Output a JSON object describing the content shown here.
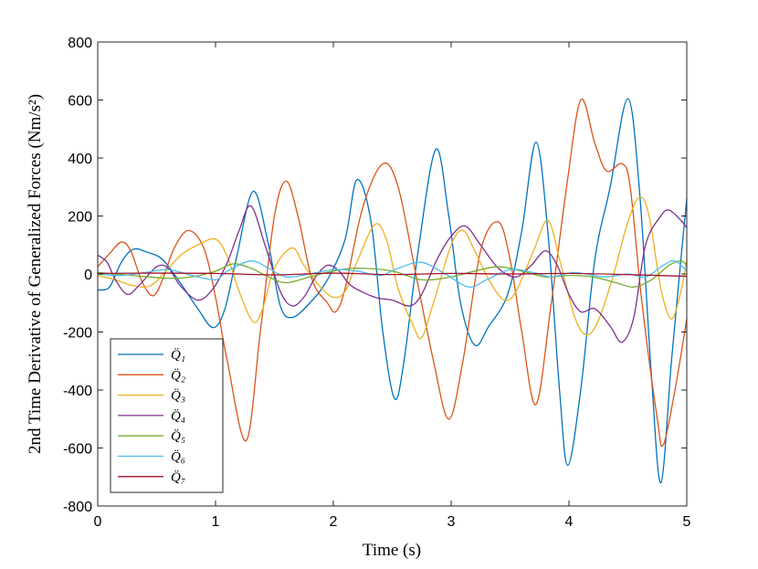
{
  "chart_data": {
    "type": "line",
    "xlabel": "Time (s)",
    "ylabel": "2nd Time Derivative of Generalized Forces (Nm/s²)",
    "xlim": [
      0,
      5
    ],
    "ylim": [
      -800,
      800
    ],
    "xticks": [
      0,
      1,
      2,
      3,
      4,
      5
    ],
    "yticks": [
      -800,
      -600,
      -400,
      -200,
      0,
      200,
      400,
      600,
      800
    ],
    "grid": false,
    "legend_position": "bottom-left",
    "series": [
      {
        "name": "Q̈₁",
        "color": "#0072BD",
        "points": [
          [
            0,
            -55
          ],
          [
            0.1,
            -45
          ],
          [
            0.2,
            40
          ],
          [
            0.3,
            85
          ],
          [
            0.42,
            75
          ],
          [
            0.55,
            50
          ],
          [
            0.7,
            -30
          ],
          [
            0.85,
            -120
          ],
          [
            0.98,
            -185
          ],
          [
            1.08,
            -120
          ],
          [
            1.18,
            60
          ],
          [
            1.32,
            285
          ],
          [
            1.45,
            100
          ],
          [
            1.55,
            -110
          ],
          [
            1.65,
            -150
          ],
          [
            1.8,
            -100
          ],
          [
            1.95,
            -20
          ],
          [
            2.1,
            120
          ],
          [
            2.2,
            325
          ],
          [
            2.32,
            180
          ],
          [
            2.42,
            -200
          ],
          [
            2.52,
            -430
          ],
          [
            2.6,
            -300
          ],
          [
            2.72,
            80
          ],
          [
            2.87,
            430
          ],
          [
            2.98,
            200
          ],
          [
            3.08,
            -100
          ],
          [
            3.2,
            -245
          ],
          [
            3.32,
            -180
          ],
          [
            3.48,
            -70
          ],
          [
            3.6,
            150
          ],
          [
            3.72,
            455
          ],
          [
            3.82,
            150
          ],
          [
            3.92,
            -400
          ],
          [
            3.99,
            -660
          ],
          [
            4.1,
            -400
          ],
          [
            4.22,
            50
          ],
          [
            4.35,
            300
          ],
          [
            4.5,
            605
          ],
          [
            4.6,
            280
          ],
          [
            4.7,
            -350
          ],
          [
            4.78,
            -720
          ],
          [
            4.87,
            -300
          ],
          [
            4.95,
            50
          ],
          [
            5.0,
            260
          ]
        ]
      },
      {
        "name": "Q̈₂",
        "color": "#D95319",
        "points": [
          [
            0,
            25
          ],
          [
            0.1,
            70
          ],
          [
            0.2,
            110
          ],
          [
            0.28,
            80
          ],
          [
            0.38,
            -30
          ],
          [
            0.47,
            -75
          ],
          [
            0.55,
            -20
          ],
          [
            0.65,
            90
          ],
          [
            0.77,
            150
          ],
          [
            0.9,
            90
          ],
          [
            1.0,
            -80
          ],
          [
            1.1,
            -300
          ],
          [
            1.26,
            -575
          ],
          [
            1.38,
            -200
          ],
          [
            1.5,
            200
          ],
          [
            1.6,
            320
          ],
          [
            1.7,
            200
          ],
          [
            1.82,
            -20
          ],
          [
            1.95,
            -100
          ],
          [
            2.02,
            -130
          ],
          [
            2.1,
            -50
          ],
          [
            2.25,
            230
          ],
          [
            2.42,
            380
          ],
          [
            2.55,
            300
          ],
          [
            2.7,
            0
          ],
          [
            2.85,
            -300
          ],
          [
            2.98,
            -500
          ],
          [
            3.1,
            -300
          ],
          [
            3.25,
            80
          ],
          [
            3.4,
            180
          ],
          [
            3.5,
            50
          ],
          [
            3.6,
            -200
          ],
          [
            3.72,
            -450
          ],
          [
            3.85,
            -100
          ],
          [
            3.98,
            300
          ],
          [
            4.1,
            600
          ],
          [
            4.22,
            450
          ],
          [
            4.32,
            355
          ],
          [
            4.45,
            380
          ],
          [
            4.52,
            300
          ],
          [
            4.62,
            -100
          ],
          [
            4.75,
            -500
          ],
          [
            4.8,
            -590
          ],
          [
            4.9,
            -400
          ],
          [
            5.0,
            -155
          ]
        ]
      },
      {
        "name": "Q̈₃",
        "color": "#EDB120",
        "points": [
          [
            0,
            -5
          ],
          [
            0.15,
            -20
          ],
          [
            0.3,
            -40
          ],
          [
            0.45,
            -40
          ],
          [
            0.6,
            20
          ],
          [
            0.72,
            70
          ],
          [
            0.85,
            100
          ],
          [
            1.0,
            120
          ],
          [
            1.1,
            60
          ],
          [
            1.2,
            -60
          ],
          [
            1.32,
            -165
          ],
          [
            1.4,
            -120
          ],
          [
            1.5,
            20
          ],
          [
            1.65,
            90
          ],
          [
            1.75,
            30
          ],
          [
            1.88,
            -40
          ],
          [
            2.0,
            -80
          ],
          [
            2.1,
            -60
          ],
          [
            2.2,
            40
          ],
          [
            2.35,
            170
          ],
          [
            2.45,
            120
          ],
          [
            2.55,
            -50
          ],
          [
            2.68,
            -180
          ],
          [
            2.75,
            -220
          ],
          [
            2.85,
            -100
          ],
          [
            3.0,
            100
          ],
          [
            3.1,
            150
          ],
          [
            3.2,
            80
          ],
          [
            3.32,
            -20
          ],
          [
            3.45,
            -90
          ],
          [
            3.55,
            -60
          ],
          [
            3.7,
            80
          ],
          [
            3.82,
            185
          ],
          [
            3.92,
            50
          ],
          [
            4.05,
            -150
          ],
          [
            4.15,
            -210
          ],
          [
            4.25,
            -160
          ],
          [
            4.38,
            0
          ],
          [
            4.5,
            180
          ],
          [
            4.6,
            265
          ],
          [
            4.68,
            200
          ],
          [
            4.78,
            -50
          ],
          [
            4.87,
            -155
          ],
          [
            4.95,
            -60
          ],
          [
            5.0,
            50
          ]
        ]
      },
      {
        "name": "Q̈₄",
        "color": "#7E2F8E",
        "points": [
          [
            0,
            65
          ],
          [
            0.08,
            40
          ],
          [
            0.15,
            -20
          ],
          [
            0.25,
            -70
          ],
          [
            0.35,
            -40
          ],
          [
            0.5,
            25
          ],
          [
            0.6,
            20
          ],
          [
            0.7,
            -40
          ],
          [
            0.85,
            -90
          ],
          [
            0.98,
            -50
          ],
          [
            1.1,
            40
          ],
          [
            1.2,
            150
          ],
          [
            1.3,
            235
          ],
          [
            1.42,
            100
          ],
          [
            1.55,
            -60
          ],
          [
            1.65,
            -110
          ],
          [
            1.75,
            -80
          ],
          [
            1.85,
            -10
          ],
          [
            1.95,
            30
          ],
          [
            2.05,
            10
          ],
          [
            2.15,
            -40
          ],
          [
            2.35,
            -80
          ],
          [
            2.5,
            -90
          ],
          [
            2.65,
            -110
          ],
          [
            2.75,
            -70
          ],
          [
            2.88,
            50
          ],
          [
            3.0,
            130
          ],
          [
            3.12,
            165
          ],
          [
            3.25,
            100
          ],
          [
            3.4,
            20
          ],
          [
            3.55,
            -10
          ],
          [
            3.68,
            30
          ],
          [
            3.8,
            80
          ],
          [
            3.9,
            30
          ],
          [
            4.0,
            -70
          ],
          [
            4.1,
            -130
          ],
          [
            4.22,
            -120
          ],
          [
            4.35,
            -180
          ],
          [
            4.45,
            -235
          ],
          [
            4.55,
            -150
          ],
          [
            4.65,
            100
          ],
          [
            4.78,
            200
          ],
          [
            4.85,
            220
          ],
          [
            4.95,
            185
          ],
          [
            5.0,
            160
          ]
        ]
      },
      {
        "name": "Q̈₅",
        "color": "#77AC30",
        "points": [
          [
            0,
            5
          ],
          [
            0.3,
            -5
          ],
          [
            0.6,
            -15
          ],
          [
            0.8,
            -10
          ],
          [
            1.0,
            10
          ],
          [
            1.15,
            35
          ],
          [
            1.3,
            20
          ],
          [
            1.45,
            -10
          ],
          [
            1.6,
            -30
          ],
          [
            1.8,
            -10
          ],
          [
            2.0,
            10
          ],
          [
            2.2,
            20
          ],
          [
            2.5,
            10
          ],
          [
            2.75,
            -20
          ],
          [
            3.0,
            -10
          ],
          [
            3.2,
            10
          ],
          [
            3.4,
            25
          ],
          [
            3.6,
            10
          ],
          [
            3.8,
            -10
          ],
          [
            4.0,
            -5
          ],
          [
            4.2,
            -10
          ],
          [
            4.4,
            -30
          ],
          [
            4.55,
            -45
          ],
          [
            4.7,
            -20
          ],
          [
            4.85,
            30
          ],
          [
            4.95,
            45
          ],
          [
            5.0,
            30
          ]
        ]
      },
      {
        "name": "Q̈₆",
        "color": "#4DBEEE",
        "points": [
          [
            0,
            0
          ],
          [
            0.2,
            -5
          ],
          [
            0.4,
            5
          ],
          [
            0.6,
            15
          ],
          [
            0.8,
            -5
          ],
          [
            1.0,
            -20
          ],
          [
            1.1,
            10
          ],
          [
            1.3,
            45
          ],
          [
            1.45,
            20
          ],
          [
            1.6,
            -10
          ],
          [
            1.8,
            0
          ],
          [
            2.0,
            15
          ],
          [
            2.2,
            10
          ],
          [
            2.4,
            -5
          ],
          [
            2.55,
            20
          ],
          [
            2.75,
            40
          ],
          [
            2.95,
            0
          ],
          [
            3.15,
            -45
          ],
          [
            3.3,
            -20
          ],
          [
            3.5,
            15
          ],
          [
            3.7,
            5
          ],
          [
            3.85,
            -10
          ],
          [
            4.05,
            5
          ],
          [
            4.3,
            -10
          ],
          [
            4.5,
            0
          ],
          [
            4.65,
            -10
          ],
          [
            4.8,
            30
          ],
          [
            4.9,
            45
          ],
          [
            5.0,
            10
          ]
        ]
      },
      {
        "name": "Q̈₇",
        "color": "#A2142F",
        "points": [
          [
            0,
            2
          ],
          [
            0.5,
            3
          ],
          [
            1.0,
            2
          ],
          [
            1.5,
            -3
          ],
          [
            2.0,
            3
          ],
          [
            2.5,
            -2
          ],
          [
            3.0,
            2
          ],
          [
            3.5,
            0
          ],
          [
            4.0,
            2
          ],
          [
            4.5,
            -2
          ],
          [
            5.0,
            -8
          ]
        ]
      }
    ]
  }
}
